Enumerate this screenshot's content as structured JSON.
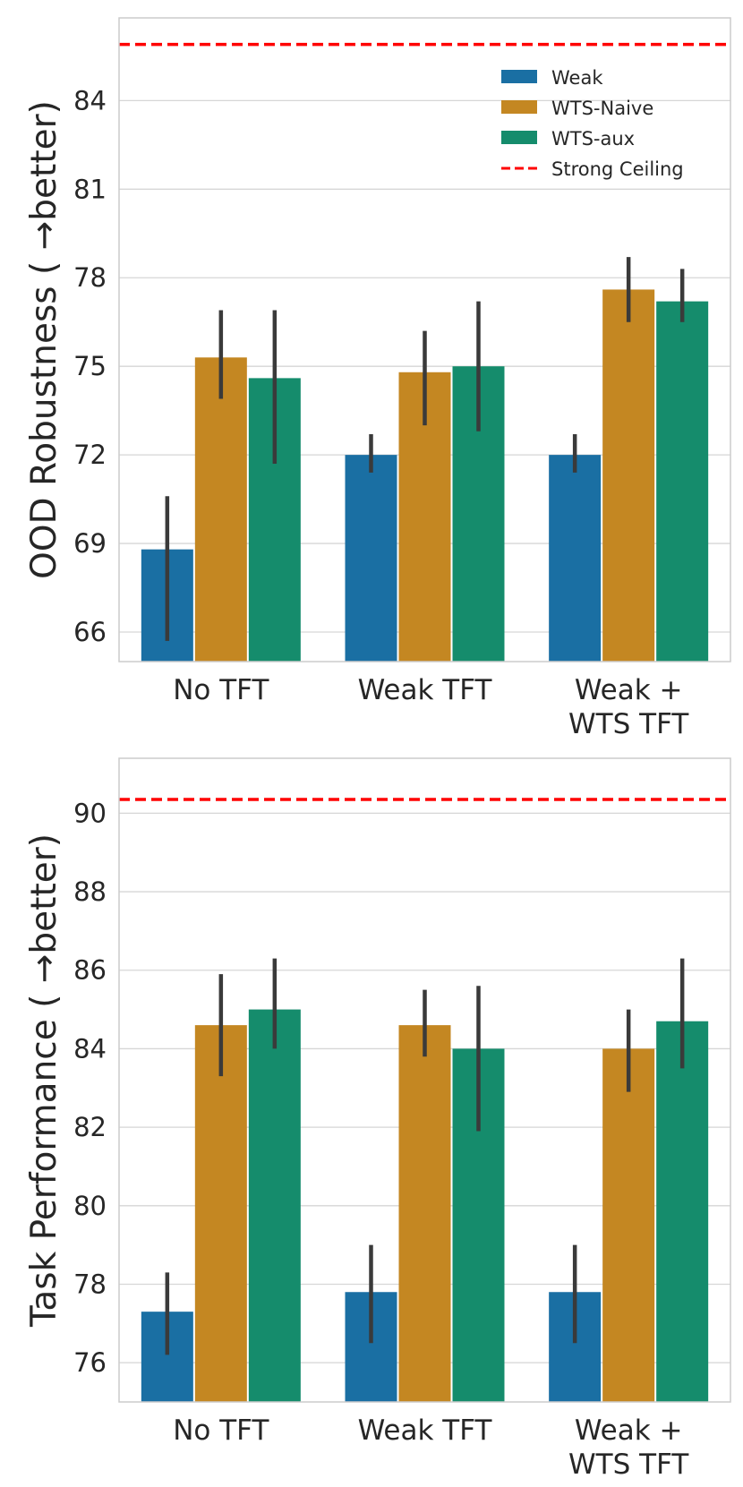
{
  "colors": {
    "weak": "#1a6fa3",
    "wts_naive": "#c48722",
    "wts_aux": "#158c6c",
    "ceiling": "#ff0000",
    "error": "#3a3a3a",
    "grid": "#d6d6d6"
  },
  "legend": {
    "entries": [
      "Weak",
      "WTS-Naive",
      "WTS-aux",
      "Strong Ceiling"
    ]
  },
  "chart_data": [
    {
      "type": "bar",
      "title": "",
      "xlabel": "",
      "ylabel": "OOD Robustness ( →better)",
      "ylim": [
        65,
        86.8
      ],
      "yticks": [
        66,
        69,
        72,
        75,
        78,
        81,
        84
      ],
      "categories": [
        [
          "No TFT"
        ],
        [
          "Weak TFT"
        ],
        [
          "Weak +",
          "WTS TFT"
        ]
      ],
      "series": [
        {
          "name": "Weak",
          "values": [
            68.8,
            72.0,
            72.0
          ],
          "err_low": [
            65.7,
            71.4,
            71.4
          ],
          "err_high": [
            70.6,
            72.7,
            72.7
          ]
        },
        {
          "name": "WTS-Naive",
          "values": [
            75.3,
            74.8,
            77.6
          ],
          "err_low": [
            73.9,
            73.0,
            76.5
          ],
          "err_high": [
            76.9,
            76.2,
            78.7
          ]
        },
        {
          "name": "WTS-aux",
          "values": [
            74.6,
            75.0,
            77.2
          ],
          "err_low": [
            71.7,
            72.8,
            76.5
          ],
          "err_high": [
            76.9,
            77.2,
            78.3
          ]
        }
      ],
      "ceiling": 85.9,
      "legend_position": "top-right"
    },
    {
      "type": "bar",
      "title": "",
      "xlabel": "",
      "ylabel": "Task Performance ( →better)",
      "ylim": [
        75.0,
        91.4
      ],
      "yticks": [
        76,
        78,
        80,
        82,
        84,
        86,
        88,
        90
      ],
      "categories": [
        [
          "No TFT"
        ],
        [
          "Weak TFT"
        ],
        [
          "Weak +",
          "WTS TFT"
        ]
      ],
      "series": [
        {
          "name": "Weak",
          "values": [
            77.3,
            77.8,
            77.8
          ],
          "err_low": [
            76.2,
            76.5,
            76.5
          ],
          "err_high": [
            78.3,
            79.0,
            79.0
          ]
        },
        {
          "name": "WTS-Naive",
          "values": [
            84.6,
            84.6,
            84.0
          ],
          "err_low": [
            83.3,
            83.8,
            82.9
          ],
          "err_high": [
            85.9,
            85.5,
            85.0
          ]
        },
        {
          "name": "WTS-aux",
          "values": [
            85.0,
            84.0,
            84.7
          ],
          "err_low": [
            84.0,
            81.9,
            83.5
          ],
          "err_high": [
            86.3,
            85.6,
            86.3
          ]
        }
      ],
      "ceiling": 90.35,
      "legend_position": "none"
    }
  ]
}
